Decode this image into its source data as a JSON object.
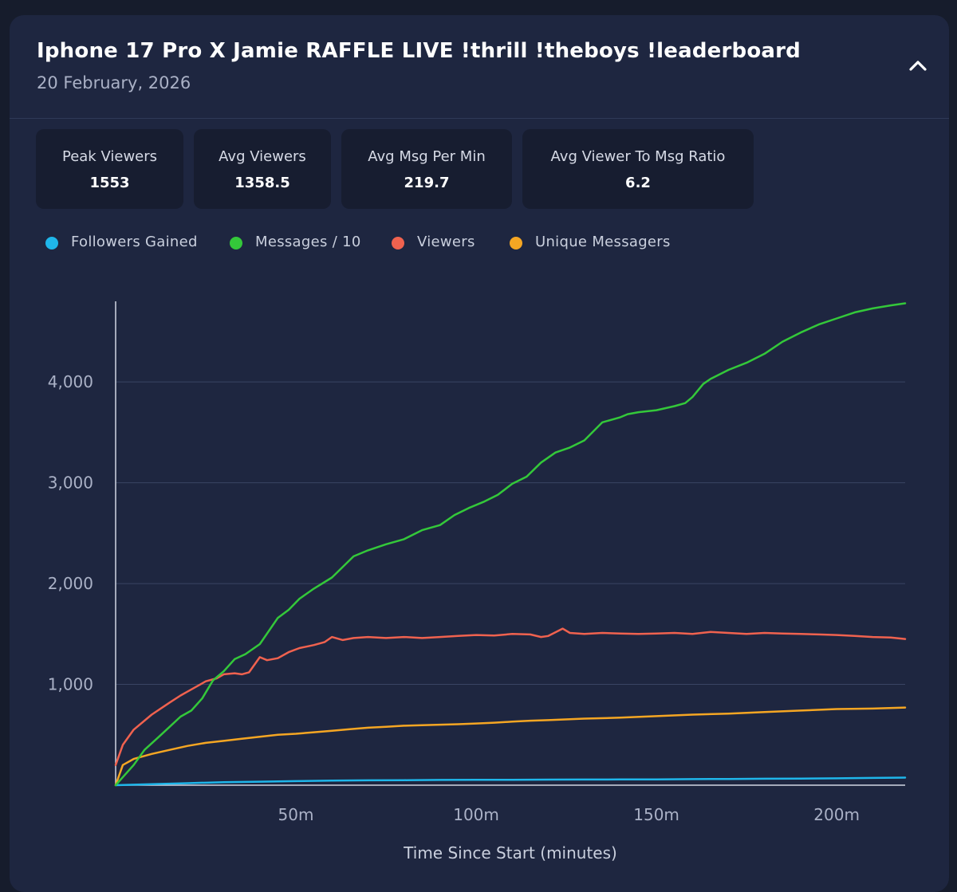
{
  "header": {
    "title": "Iphone 17 Pro X Jamie RAFFLE LIVE !thrill !theboys !leaderboard",
    "date": "20 February, 2026",
    "collapse_icon": "chevron-up-icon"
  },
  "stats": [
    {
      "label": "Peak Viewers",
      "value": "1553"
    },
    {
      "label": "Avg Viewers",
      "value": "1358.5"
    },
    {
      "label": "Avg Msg Per Min",
      "value": "219.7"
    },
    {
      "label": "Avg Viewer To Msg Ratio",
      "value": "6.2"
    }
  ],
  "legend": [
    {
      "label": "Followers Gained",
      "color": "#1fb6ea"
    },
    {
      "label": "Messages / 10",
      "color": "#34c83a"
    },
    {
      "label": "Viewers",
      "color": "#f0624f"
    },
    {
      "label": "Unique Messagers",
      "color": "#f5a623"
    }
  ],
  "chart_data": {
    "type": "line",
    "title": "",
    "xlabel": "Time Since Start (minutes)",
    "ylabel": "",
    "xlim": [
      0,
      219
    ],
    "ylim": [
      0,
      4800
    ],
    "x_ticks": [
      50,
      100,
      150,
      200
    ],
    "x_tick_labels": [
      "50m",
      "100m",
      "150m",
      "200m"
    ],
    "y_ticks": [
      1000,
      2000,
      3000,
      4000
    ],
    "y_tick_labels": [
      "1,000",
      "2,000",
      "3,000",
      "4,000"
    ],
    "grid": true,
    "series": [
      {
        "name": "Followers Gained",
        "color": "#1fb6ea",
        "x": [
          0,
          10,
          20,
          30,
          40,
          50,
          60,
          70,
          80,
          90,
          100,
          110,
          120,
          130,
          140,
          150,
          160,
          170,
          180,
          190,
          200,
          210,
          219
        ],
        "values": [
          0,
          10,
          20,
          30,
          35,
          40,
          45,
          48,
          50,
          52,
          53,
          54,
          55,
          56,
          57,
          58,
          60,
          62,
          64,
          66,
          68,
          72,
          75
        ]
      },
      {
        "name": "Messages / 10",
        "color": "#34c83a",
        "x": [
          0,
          2,
          5,
          8,
          12,
          15,
          18,
          21,
          24,
          27,
          30,
          33,
          36,
          40,
          45,
          48,
          51,
          55,
          60,
          66,
          70,
          75,
          80,
          85,
          90,
          94,
          98,
          102,
          106,
          110,
          114,
          118,
          122,
          126,
          130,
          135,
          140,
          142,
          145,
          150,
          155,
          158,
          160,
          163,
          165,
          170,
          175,
          180,
          185,
          190,
          195,
          200,
          205,
          210,
          215,
          219
        ],
        "values": [
          0,
          80,
          200,
          350,
          480,
          580,
          680,
          740,
          860,
          1040,
          1130,
          1250,
          1300,
          1400,
          1660,
          1740,
          1850,
          1950,
          2060,
          2270,
          2330,
          2390,
          2440,
          2530,
          2580,
          2680,
          2750,
          2810,
          2880,
          2990,
          3060,
          3200,
          3300,
          3350,
          3420,
          3600,
          3650,
          3680,
          3700,
          3720,
          3760,
          3790,
          3850,
          3980,
          4030,
          4120,
          4190,
          4280,
          4400,
          4490,
          4570,
          4630,
          4690,
          4730,
          4760,
          4780
        ]
      },
      {
        "name": "Viewers",
        "color": "#f0624f",
        "x": [
          0,
          2,
          5,
          10,
          15,
          18,
          20,
          23,
          25,
          28,
          30,
          33,
          35,
          37,
          40,
          42,
          45,
          48,
          51,
          55,
          58,
          60,
          63,
          66,
          70,
          75,
          80,
          85,
          90,
          95,
          100,
          105,
          110,
          115,
          118,
          120,
          124,
          126,
          130,
          135,
          140,
          145,
          150,
          155,
          160,
          165,
          170,
          175,
          180,
          185,
          190,
          195,
          200,
          205,
          210,
          215,
          219
        ],
        "values": [
          200,
          400,
          550,
          700,
          820,
          890,
          930,
          990,
          1030,
          1060,
          1100,
          1110,
          1100,
          1120,
          1270,
          1240,
          1260,
          1320,
          1360,
          1390,
          1420,
          1470,
          1440,
          1460,
          1470,
          1460,
          1470,
          1460,
          1470,
          1480,
          1490,
          1485,
          1500,
          1495,
          1470,
          1480,
          1553,
          1510,
          1500,
          1510,
          1505,
          1500,
          1505,
          1510,
          1500,
          1520,
          1510,
          1500,
          1510,
          1505,
          1500,
          1495,
          1490,
          1480,
          1470,
          1465,
          1450
        ]
      },
      {
        "name": "Unique Messagers",
        "color": "#f5a623",
        "x": [
          0,
          2,
          5,
          10,
          15,
          20,
          25,
          30,
          35,
          40,
          45,
          50,
          55,
          60,
          65,
          70,
          75,
          80,
          85,
          90,
          95,
          100,
          105,
          110,
          115,
          120,
          130,
          140,
          150,
          160,
          170,
          180,
          190,
          200,
          210,
          219
        ],
        "values": [
          0,
          200,
          260,
          310,
          350,
          390,
          420,
          440,
          460,
          480,
          500,
          510,
          525,
          540,
          555,
          570,
          580,
          590,
          595,
          600,
          605,
          612,
          620,
          630,
          640,
          645,
          660,
          670,
          685,
          700,
          710,
          725,
          740,
          755,
          760,
          770
        ]
      }
    ]
  }
}
